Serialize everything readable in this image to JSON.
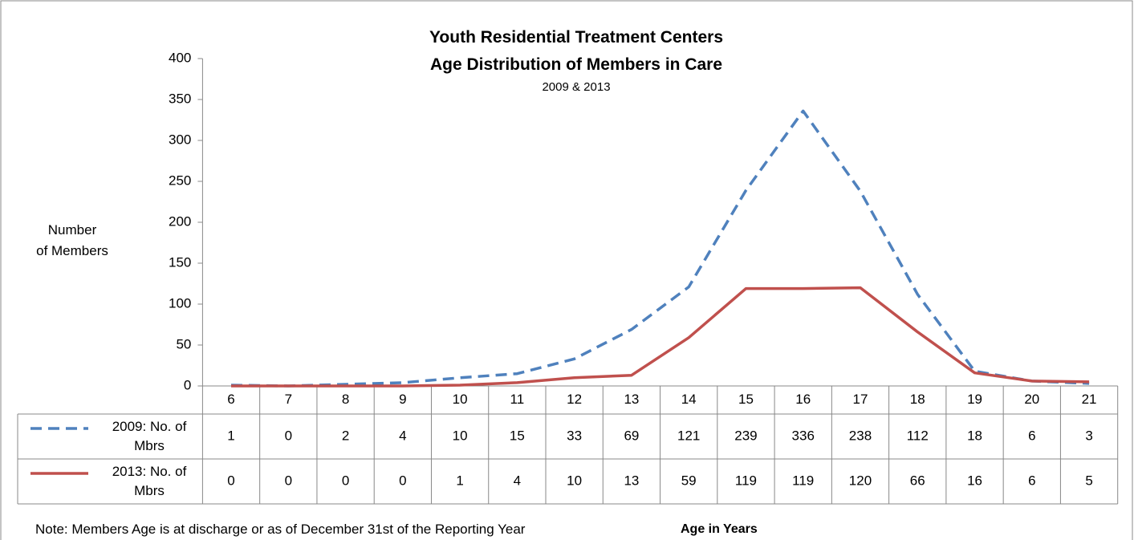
{
  "chart_data": {
    "type": "line",
    "title": "Youth Residential Treatment Centers\nAge Distribution of Members in Care",
    "subtitle": "2009 & 2013",
    "y_label": "Number\nof Members",
    "x_label": "Age in Years",
    "note": "Note: Members Age is at discharge or as of December 31st of the Reporting Year",
    "categories": [
      "6",
      "7",
      "8",
      "9",
      "10",
      "11",
      "12",
      "13",
      "14",
      "15",
      "16",
      "17",
      "18",
      "19",
      "20",
      "21"
    ],
    "series": [
      {
        "name": "2009: No. of Mbrs",
        "color": "#4f81bd",
        "dashed": true,
        "values": [
          1,
          0,
          2,
          4,
          10,
          15,
          33,
          69,
          121,
          239,
          336,
          238,
          112,
          18,
          6,
          3
        ]
      },
      {
        "name": "2013: No. of Mbrs",
        "color": "#c0504d",
        "dashed": false,
        "values": [
          0,
          0,
          0,
          0,
          1,
          4,
          10,
          13,
          59,
          119,
          119,
          120,
          66,
          16,
          6,
          5
        ]
      }
    ],
    "ylim": [
      0,
      400
    ],
    "yticks": [
      0,
      50,
      100,
      150,
      200,
      250,
      300,
      350,
      400
    ],
    "data_table": true
  }
}
